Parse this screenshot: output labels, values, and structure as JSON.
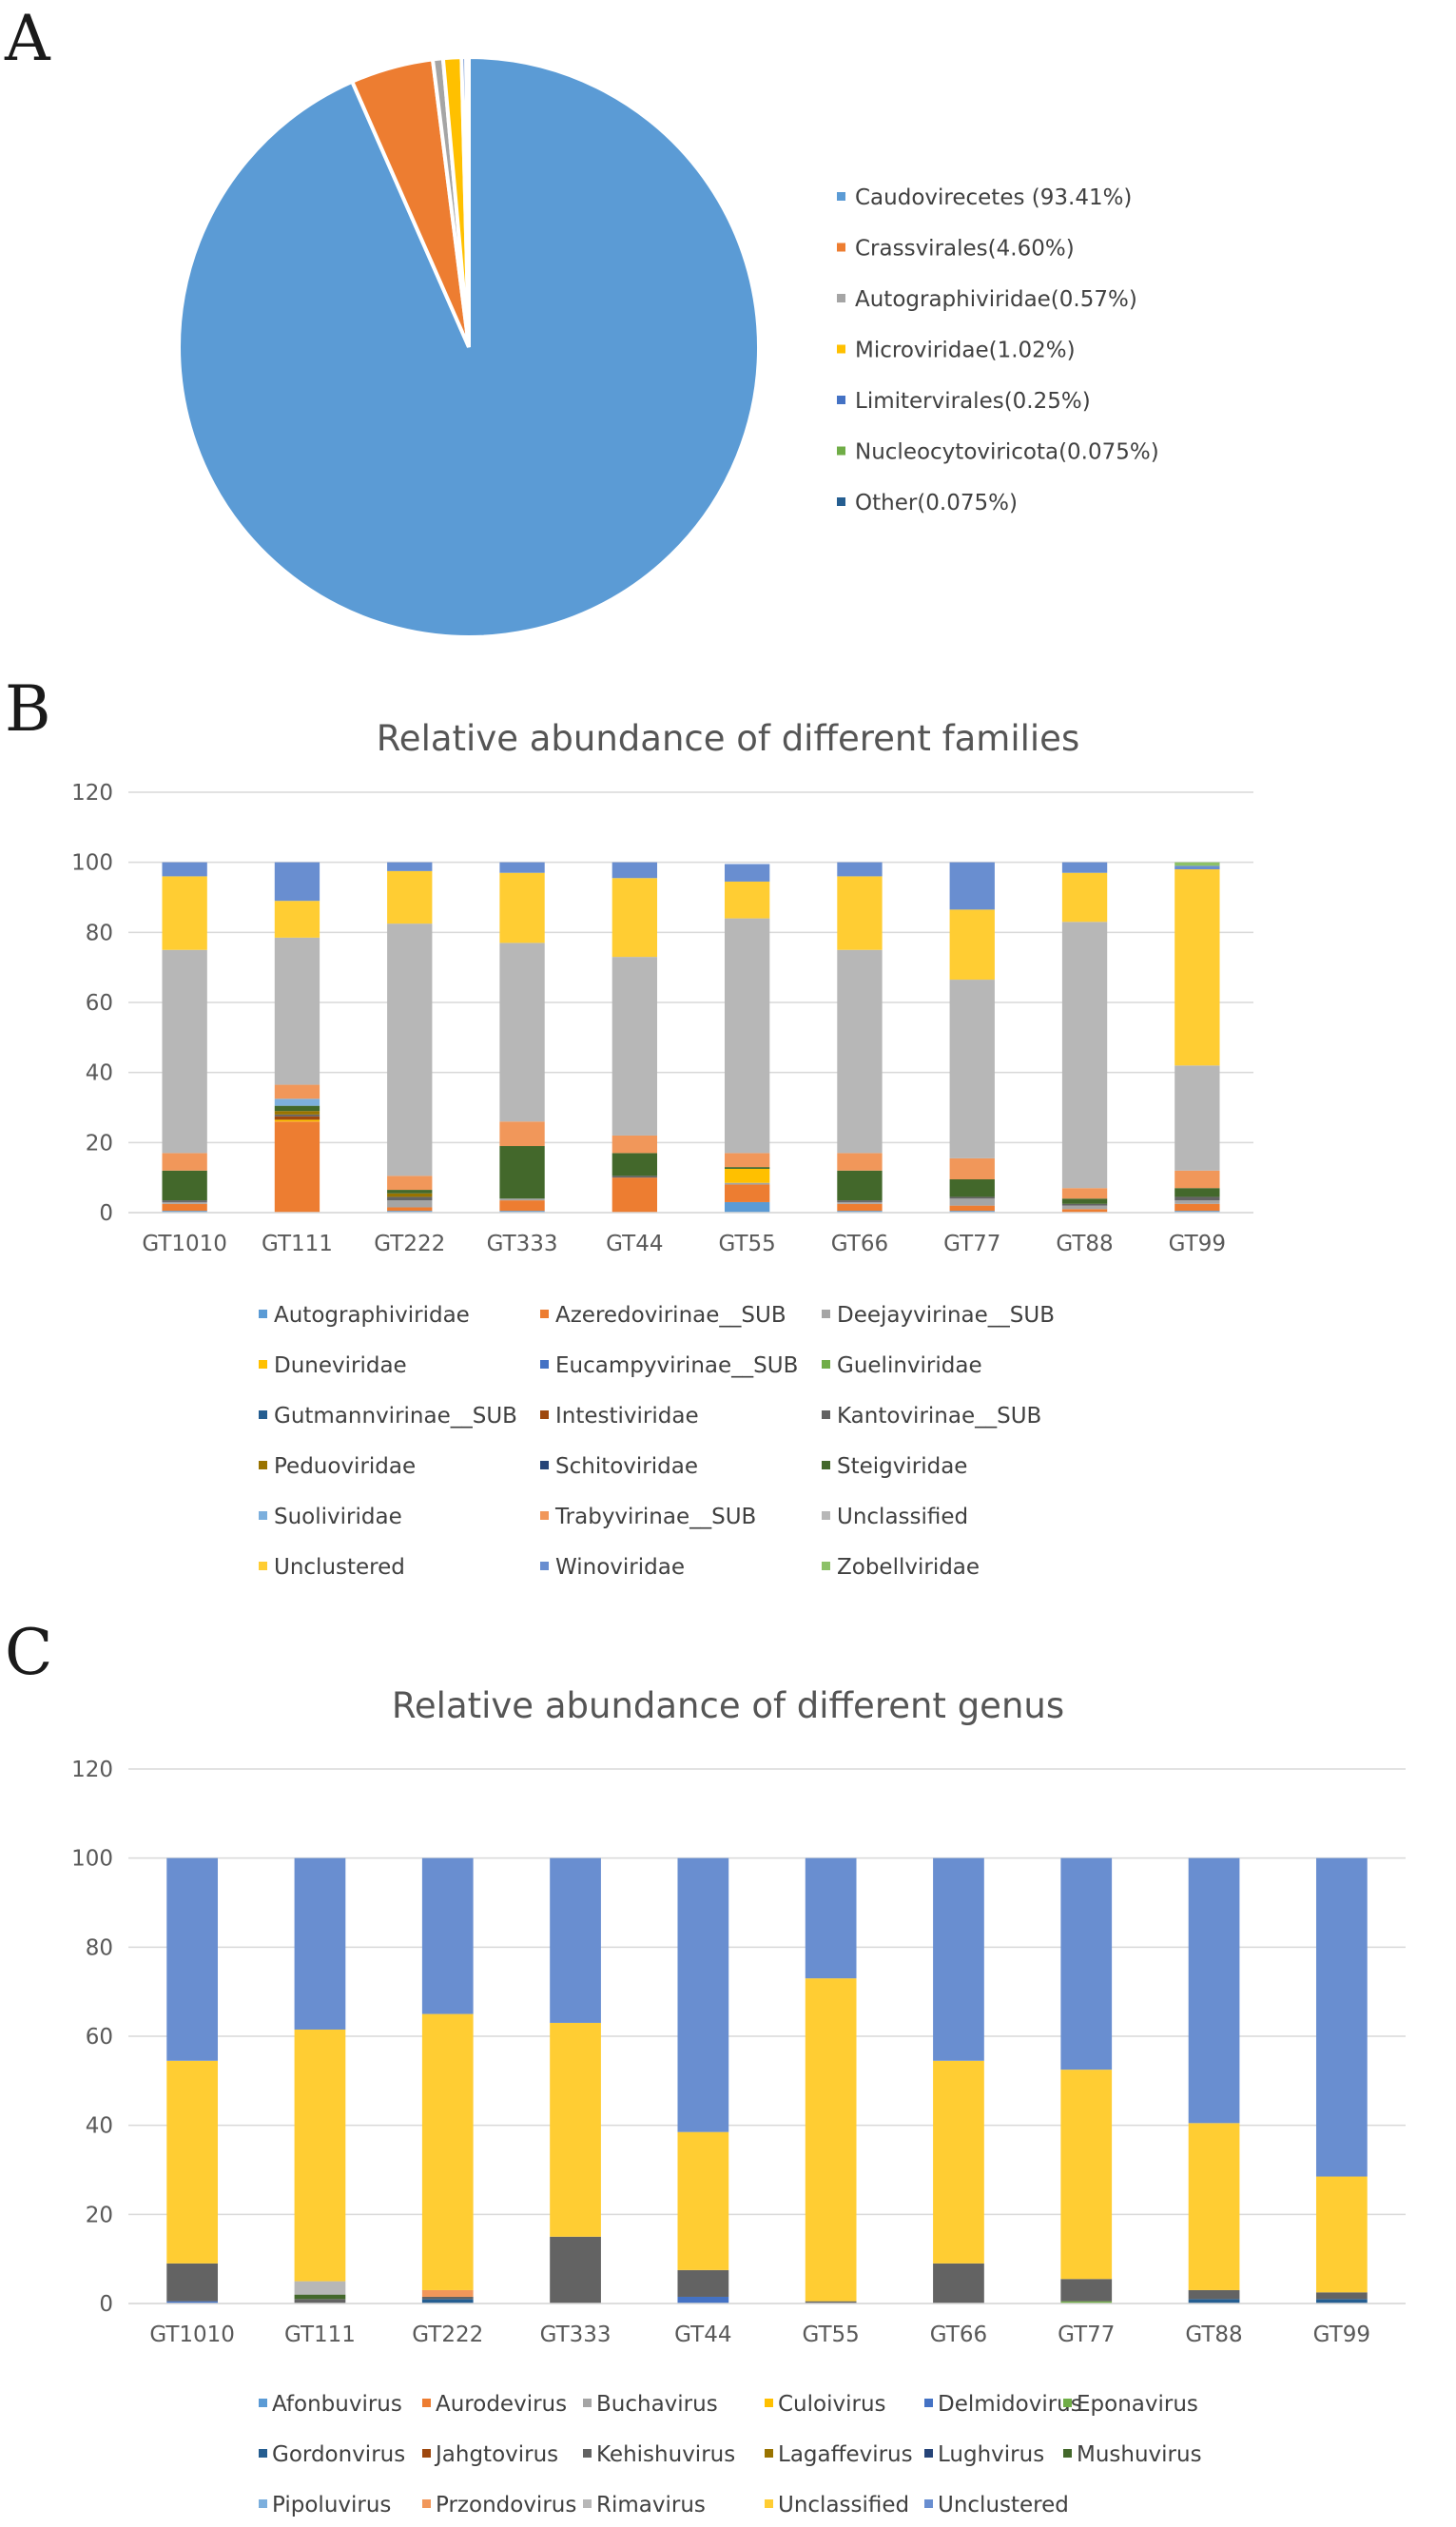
{
  "panels": {
    "a": "A",
    "b": "B",
    "c": "C"
  },
  "chart_data": [
    {
      "type": "pie",
      "title": "",
      "labels": [
        "Caudovirecetes (93.41%)",
        "Crassvirales(4.60%)",
        "Autographiviridae(0.57%)",
        "Microviridae(1.02%)",
        "Limitervirales(0.25%)",
        "Nucleocytoviricota(0.075%)",
        "Other(0.075%)"
      ],
      "values": [
        93.41,
        4.6,
        0.57,
        1.02,
        0.25,
        0.075,
        0.075
      ],
      "colors": [
        "#5b9bd5",
        "#ed7d31",
        "#a5a5a5",
        "#ffc000",
        "#4472c4",
        "#70ad47",
        "#255e91"
      ],
      "legend_position": "right"
    },
    {
      "type": "bar",
      "stacked": true,
      "title": "Relative abundance of different families",
      "xlabel": "",
      "ylabel": "",
      "ylim": [
        0,
        120
      ],
      "yticks": [
        0,
        20,
        40,
        60,
        80,
        100,
        120
      ],
      "categories": [
        "GT1010",
        "GT111",
        "GT222",
        "GT333",
        "GT44",
        "GT55",
        "GT66",
        "GT77",
        "GT88",
        "GT99"
      ],
      "series": [
        {
          "name": "Autographiviridae",
          "color": "#5b9bd5",
          "values": [
            0.5,
            0,
            0.5,
            0.5,
            0,
            3,
            0.5,
            0.5,
            0,
            0.5
          ]
        },
        {
          "name": "Azeredovirinae__SUB",
          "color": "#ed7d31",
          "values": [
            2,
            26,
            1,
            3,
            10,
            5,
            2,
            1.5,
            1,
            2
          ]
        },
        {
          "name": "Deejayvirinae__SUB",
          "color": "#a5a5a5",
          "values": [
            0.5,
            0,
            2,
            0.5,
            0,
            0.5,
            0.5,
            2,
            1,
            1
          ]
        },
        {
          "name": "Duneviridae",
          "color": "#ffc000",
          "values": [
            0,
            0.5,
            0,
            0,
            0,
            4,
            0,
            0,
            0,
            0
          ]
        },
        {
          "name": "Eucampyvirinae__SUB",
          "color": "#4472c4",
          "values": [
            0,
            0,
            0,
            0,
            0,
            0,
            0,
            0,
            0,
            0
          ]
        },
        {
          "name": "Guelinviridae",
          "color": "#70ad47",
          "values": [
            0,
            0,
            0,
            0,
            0,
            0,
            0,
            0,
            0,
            0
          ]
        },
        {
          "name": "Gutmannvirinae__SUB",
          "color": "#255e91",
          "values": [
            0,
            0,
            0,
            0,
            0,
            0,
            0,
            0,
            0,
            0
          ]
        },
        {
          "name": "Intestiviridae",
          "color": "#9e480e",
          "values": [
            0,
            1,
            0,
            0,
            0,
            0,
            0,
            0,
            0,
            0
          ]
        },
        {
          "name": "Kantovirinae__SUB",
          "color": "#636363",
          "values": [
            0.5,
            0.5,
            1,
            0,
            0.5,
            0,
            0.5,
            0.5,
            0.5,
            1
          ]
        },
        {
          "name": "Peduoviridae",
          "color": "#997300",
          "values": [
            0,
            1,
            1,
            0,
            0,
            0,
            0,
            0,
            0,
            0
          ]
        },
        {
          "name": "Schitoviridae",
          "color": "#264478",
          "values": [
            0,
            0,
            0,
            0,
            0,
            0,
            0,
            0,
            0,
            0
          ]
        },
        {
          "name": "Steigviridae",
          "color": "#43682b",
          "values": [
            8.5,
            1.5,
            1,
            15,
            6.5,
            0.5,
            8.5,
            5,
            1.5,
            2.5
          ]
        },
        {
          "name": "Suoliviridae",
          "color": "#7cafdd",
          "values": [
            0,
            2,
            0,
            0,
            0,
            0,
            0,
            0,
            0,
            0
          ]
        },
        {
          "name": "Trabyvirinae__SUB",
          "color": "#f1975a",
          "values": [
            5,
            4,
            4,
            7,
            5,
            4,
            5,
            6,
            3,
            5
          ]
        },
        {
          "name": "Unclassified",
          "color": "#b7b7b7",
          "values": [
            58,
            42,
            72,
            51,
            51,
            67,
            58,
            51,
            76,
            30
          ]
        },
        {
          "name": "Unclustered",
          "color": "#ffcd33",
          "values": [
            21,
            10.5,
            15,
            20,
            22.5,
            10.5,
            21,
            20,
            14,
            56
          ]
        },
        {
          "name": "Winoviridae",
          "color": "#698ed0",
          "values": [
            4,
            11,
            2.5,
            3,
            4.5,
            5,
            4,
            13.5,
            3,
            1
          ]
        },
        {
          "name": "Zobellviridae",
          "color": "#8cc168",
          "values": [
            0,
            0,
            0,
            0,
            0,
            0,
            0,
            0,
            0,
            1
          ]
        }
      ],
      "grid": true,
      "legend_position": "bottom"
    },
    {
      "type": "bar",
      "stacked": true,
      "title": "Relative abundance of different genus",
      "xlabel": "",
      "ylabel": "",
      "ylim": [
        0,
        120
      ],
      "yticks": [
        0,
        20,
        40,
        60,
        80,
        100,
        120
      ],
      "categories": [
        "GT1010",
        "GT111",
        "GT222",
        "GT333",
        "GT44",
        "GT55",
        "GT66",
        "GT77",
        "GT88",
        "GT99"
      ],
      "series": [
        {
          "name": "Afonbuvirus",
          "color": "#5b9bd5",
          "values": [
            0,
            0,
            0,
            0,
            0,
            0,
            0,
            0,
            0,
            0
          ]
        },
        {
          "name": "Aurodevirus",
          "color": "#ed7d31",
          "values": [
            0,
            0,
            0,
            0,
            0,
            0,
            0,
            0,
            0,
            0
          ]
        },
        {
          "name": "Buchavirus",
          "color": "#a5a5a5",
          "values": [
            0,
            0,
            0,
            0,
            0,
            0,
            0,
            0,
            0,
            0
          ]
        },
        {
          "name": "Culoivirus",
          "color": "#ffc000",
          "values": [
            0,
            0,
            0,
            0,
            0,
            0,
            0,
            0,
            0,
            0
          ]
        },
        {
          "name": "Delmidovirus",
          "color": "#4472c4",
          "values": [
            0.5,
            0,
            0,
            0,
            1.5,
            0,
            0,
            0,
            0,
            0
          ]
        },
        {
          "name": "Eponavirus",
          "color": "#70ad47",
          "values": [
            0,
            0,
            0,
            0,
            0,
            0,
            0,
            0.5,
            0,
            0
          ]
        },
        {
          "name": "Gordonvirus",
          "color": "#255e91",
          "values": [
            0,
            0,
            1,
            0,
            0,
            0,
            0,
            0,
            1,
            1
          ]
        },
        {
          "name": "Jahgtovirus",
          "color": "#9e480e",
          "values": [
            0,
            0,
            0,
            0,
            0,
            0,
            0,
            0,
            0,
            0
          ]
        },
        {
          "name": "Kehishuvirus",
          "color": "#636363",
          "values": [
            8.5,
            1,
            0.5,
            15,
            6,
            0.5,
            9,
            5,
            2,
            1.5
          ]
        },
        {
          "name": "Lagaffevirus",
          "color": "#997300",
          "values": [
            0,
            0,
            0,
            0,
            0,
            0,
            0,
            0,
            0,
            0
          ]
        },
        {
          "name": "Lughvirus",
          "color": "#264478",
          "values": [
            0,
            0,
            0,
            0,
            0,
            0,
            0,
            0,
            0,
            0
          ]
        },
        {
          "name": "Mushuvirus",
          "color": "#43682b",
          "values": [
            0,
            1,
            0,
            0,
            0,
            0,
            0,
            0,
            0,
            0
          ]
        },
        {
          "name": "Pipoluvirus",
          "color": "#7cafdd",
          "values": [
            0,
            0,
            0,
            0,
            0,
            0,
            0,
            0,
            0,
            0
          ]
        },
        {
          "name": "Przondovirus",
          "color": "#f1975a",
          "values": [
            0,
            0,
            1.5,
            0,
            0,
            0,
            0,
            0,
            0,
            0
          ]
        },
        {
          "name": "Rimavirus",
          "color": "#b7b7b7",
          "values": [
            0,
            3,
            0,
            0,
            0,
            0,
            0,
            0,
            0,
            0
          ]
        },
        {
          "name": "Unclassified",
          "color": "#ffcd33",
          "values": [
            45.5,
            56.5,
            62,
            48,
            31,
            72.5,
            45.5,
            47,
            37.5,
            26
          ]
        },
        {
          "name": "Unclustered",
          "color": "#698ed0",
          "values": [
            45.5,
            38.5,
            35,
            37,
            61.5,
            27,
            45.5,
            47.5,
            59.5,
            71.5
          ]
        }
      ],
      "grid": true,
      "legend_position": "bottom"
    }
  ]
}
